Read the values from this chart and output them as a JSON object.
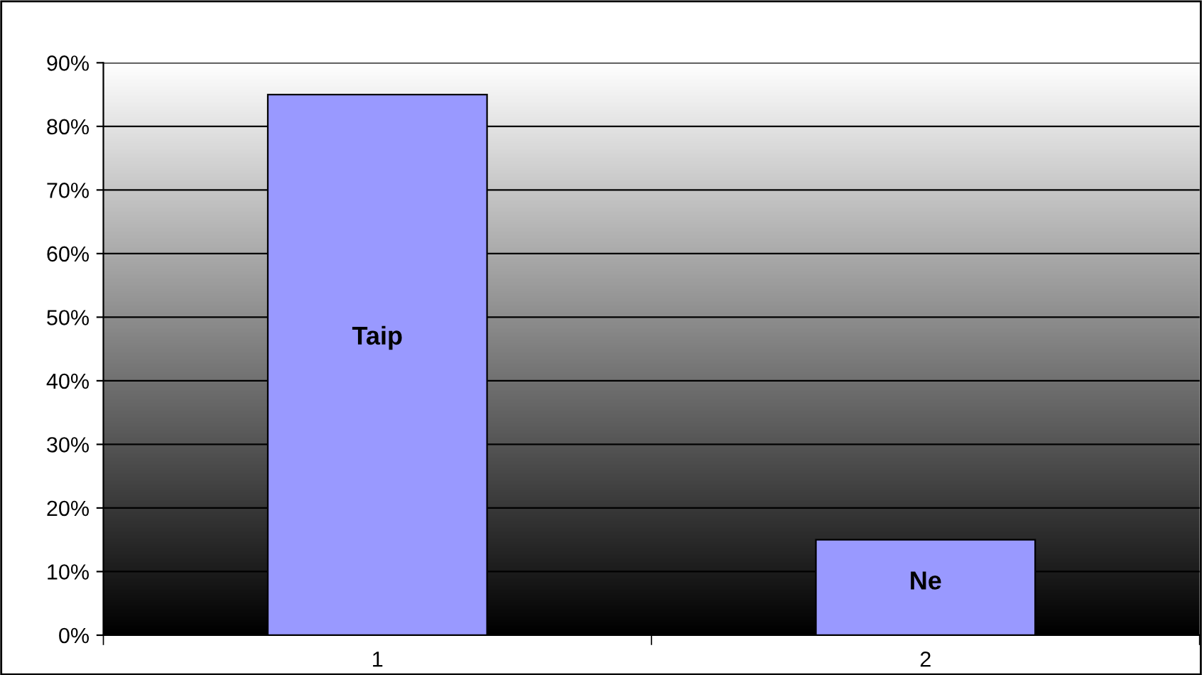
{
  "chart_data": {
    "type": "bar",
    "categories": [
      "1",
      "2"
    ],
    "values": [
      85,
      15
    ],
    "color": "#9999ff",
    "ylim": [
      0,
      90
    ],
    "yticks": [
      {
        "value": 0,
        "label": "0%"
      },
      {
        "value": 10,
        "label": "10%"
      },
      {
        "value": 20,
        "label": "20%"
      },
      {
        "value": 30,
        "label": "30%"
      },
      {
        "value": 40,
        "label": "40%"
      },
      {
        "value": 50,
        "label": "50%"
      },
      {
        "value": 60,
        "label": "60%"
      },
      {
        "value": 70,
        "label": "70%"
      },
      {
        "value": 80,
        "label": "80%"
      },
      {
        "value": 90,
        "label": "90%"
      }
    ],
    "grid": "y",
    "annotations": [
      "Taip",
      "Ne"
    ]
  }
}
